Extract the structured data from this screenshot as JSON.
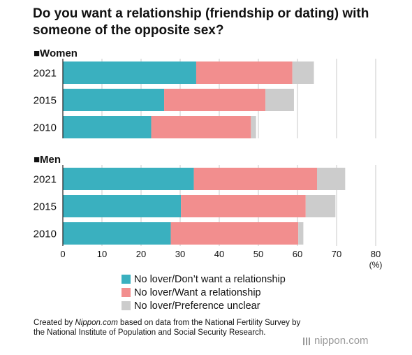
{
  "title": "Do you want a relationship (friendship or dating) with someone of the opposite sex?",
  "unit_label": "(%)",
  "colors": {
    "teal": "#3ab0bf",
    "pink": "#f28e8e",
    "gray": "#cccccc",
    "grid": "#c8c8c8"
  },
  "chart_data": {
    "type": "bar",
    "orientation": "horizontal",
    "stacked": true,
    "xlim": [
      0,
      80
    ],
    "x_ticks": [
      "0",
      "10",
      "20",
      "30",
      "40",
      "50",
      "60",
      "70",
      "80"
    ],
    "series_names": [
      "No lover/Don’t want a relationship",
      "No lover/Want a relationship",
      "No lover/Preference unclear"
    ],
    "groups": [
      {
        "name": "■Women",
        "categories": [
          "2021",
          "2015",
          "2010"
        ],
        "series": [
          {
            "name": "No lover/Don’t want a relationship",
            "values": [
              34.1,
              25.9,
              22.6
            ]
          },
          {
            "name": "No lover/Want a relationship",
            "values": [
              24.6,
              25.9,
              25.5
            ]
          },
          {
            "name": "No lover/Preference unclear",
            "values": [
              5.5,
              7.3,
              1.3
            ]
          }
        ]
      },
      {
        "name": "■Men",
        "categories": [
          "2021",
          "2015",
          "2010"
        ],
        "series": [
          {
            "name": "No lover/Don’t want a relationship",
            "values": [
              33.5,
              30.2,
              27.6
            ]
          },
          {
            "name": "No lover/Want a relationship",
            "values": [
              31.5,
              31.9,
              32.6
            ]
          },
          {
            "name": "No lover/Preference unclear",
            "values": [
              7.2,
              7.6,
              1.3
            ]
          }
        ]
      }
    ],
    "grid": true,
    "legend_position": "bottom"
  },
  "source_parts": {
    "before": "Created by ",
    "italic": "Nippon.com",
    "after": " based on data from the National Fertility Survey by the National Institute of Population and Social Security Research."
  },
  "logo_text": {
    "main": "nippon",
    "suffix": ".com"
  }
}
